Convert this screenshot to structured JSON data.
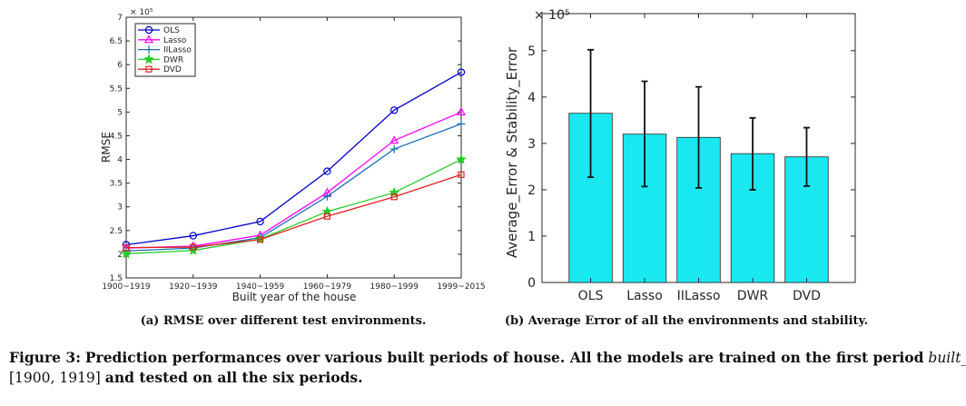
{
  "figure": {
    "caption_label": "Figure 3:",
    "caption_bold": "Prediction performances over various built periods of house. All the models are trained on the first period",
    "caption_math_var": "built_year",
    "caption_math_in": "∈",
    "caption_interval": "[1900, 1919]",
    "caption_tail": "and tested on all the six periods."
  },
  "colors": {
    "OLS": "#0000cc",
    "Lasso": "#ff00ff",
    "IILasso": "#1a6fb5",
    "DWR": "#22cc22",
    "DVD": "#dd2222",
    "bar_fill": "#19e8f0",
    "error_bar": "#111111"
  },
  "chart_data": [
    {
      "id": "a",
      "type": "line",
      "subcaption": "(a) RMSE over different test environments.",
      "xlabel": "Built year of the house",
      "ylabel": "RMSE",
      "exponent_label": "× 10⁵",
      "categories": [
        "1900~1919",
        "1920~1939",
        "1940~1959",
        "1960~1979",
        "1980~1999",
        "1999~2015"
      ],
      "ylim": [
        1.5,
        7
      ],
      "yticks": [
        "1.5",
        "2",
        "2.5",
        "3",
        "3.5",
        "4",
        "4.5",
        "5",
        "5.5",
        "6",
        "6.5",
        "7"
      ],
      "legend_position": "top-left",
      "series": [
        {
          "name": "OLS",
          "marker": "circle",
          "values": [
            2.2,
            2.39,
            2.69,
            3.75,
            5.04,
            5.84
          ]
        },
        {
          "name": "Lasso",
          "marker": "triangle",
          "values": [
            2.13,
            2.17,
            2.4,
            3.3,
            4.4,
            5.0
          ]
        },
        {
          "name": "IILasso",
          "marker": "plus",
          "values": [
            2.07,
            2.13,
            2.35,
            3.22,
            4.22,
            4.75
          ]
        },
        {
          "name": "DWR",
          "marker": "star",
          "values": [
            2.01,
            2.08,
            2.32,
            2.9,
            3.3,
            4.0
          ]
        },
        {
          "name": "DVD",
          "marker": "square",
          "values": [
            2.14,
            2.15,
            2.31,
            2.8,
            3.21,
            3.68
          ]
        }
      ]
    },
    {
      "id": "b",
      "type": "bar",
      "subcaption": "(b) Average Error of all the environments and stability.",
      "xlabel": "",
      "ylabel": "Average_Error & Stability_Error",
      "exponent_label": "× 10⁵",
      "categories": [
        "OLS",
        "Lasso",
        "IILasso",
        "DWR",
        "DVD"
      ],
      "values": [
        3.65,
        3.2,
        3.13,
        2.78,
        2.71
      ],
      "error_low": [
        2.27,
        2.07,
        2.04,
        2.0,
        2.08
      ],
      "error_high": [
        5.02,
        4.34,
        4.22,
        3.55,
        3.34
      ],
      "ylim": [
        0,
        5.8
      ],
      "yticks": [
        "0",
        "1",
        "2",
        "3",
        "4",
        "5"
      ]
    }
  ]
}
